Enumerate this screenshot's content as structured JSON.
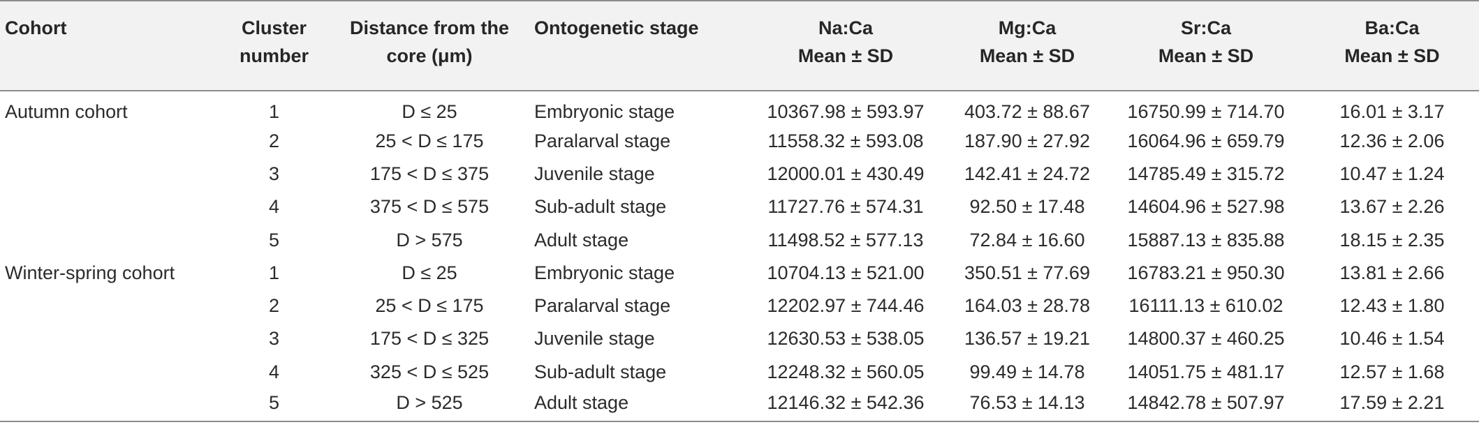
{
  "table": {
    "headers": {
      "cohort": "Cohort",
      "cluster": [
        "Cluster",
        "number"
      ],
      "distance": [
        "Distance from the",
        "core (μm)"
      ],
      "stage": "Ontogenetic stage",
      "na": [
        "Na:Ca",
        "Mean ± SD"
      ],
      "mg": [
        "Mg:Ca",
        "Mean ± SD"
      ],
      "sr": [
        "Sr:Ca",
        "Mean ± SD"
      ],
      "ba": [
        "Ba:Ca",
        "Mean ± SD"
      ]
    },
    "rows": [
      {
        "cohort": "Autumn cohort",
        "cluster": "1",
        "distance": "D ≤ 25",
        "stage": "Embryonic stage",
        "na": "10367.98 ± 593.97",
        "mg": "403.72 ± 88.67",
        "sr": "16750.99 ± 714.70",
        "ba": "16.01 ± 3.17"
      },
      {
        "cohort": "",
        "cluster": "2",
        "distance": "25 < D ≤ 175",
        "stage": "Paralarval stage",
        "na": "11558.32 ± 593.08",
        "mg": "187.90 ± 27.92",
        "sr": "16064.96 ± 659.79",
        "ba": "12.36 ± 2.06"
      },
      {
        "cohort": "",
        "cluster": "3",
        "distance": "175 < D ≤ 375",
        "stage": "Juvenile stage",
        "na": "12000.01 ± 430.49",
        "mg": "142.41 ± 24.72",
        "sr": "14785.49 ± 315.72",
        "ba": "10.47 ± 1.24"
      },
      {
        "cohort": "",
        "cluster": "4",
        "distance": "375 < D ≤ 575",
        "stage": "Sub-adult stage",
        "na": "11727.76 ± 574.31",
        "mg": "92.50 ± 17.48",
        "sr": "14604.96 ± 527.98",
        "ba": "13.67 ± 2.26"
      },
      {
        "cohort": "",
        "cluster": "5",
        "distance": "D > 575",
        "stage": "Adult stage",
        "na": "11498.52 ± 577.13",
        "mg": "72.84 ± 16.60",
        "sr": "15887.13 ± 835.88",
        "ba": "18.15 ± 2.35"
      },
      {
        "cohort": "Winter-spring cohort",
        "cluster": "1",
        "distance": "D ≤ 25",
        "stage": "Embryonic stage",
        "na": "10704.13 ± 521.00",
        "mg": "350.51 ± 77.69",
        "sr": "16783.21 ± 950.30",
        "ba": "13.81 ± 2.66"
      },
      {
        "cohort": "",
        "cluster": "2",
        "distance": "25 < D ≤ 175",
        "stage": "Paralarval stage",
        "na": "12202.97 ± 744.46",
        "mg": "164.03 ± 28.78",
        "sr": "16111.13 ± 610.02",
        "ba": "12.43 ± 1.80"
      },
      {
        "cohort": "",
        "cluster": "3",
        "distance": "175 < D ≤ 325",
        "stage": "Juvenile stage",
        "na": "12630.53 ± 538.05",
        "mg": "136.57 ± 19.21",
        "sr": "14800.37 ± 460.25",
        "ba": "10.46 ± 1.54"
      },
      {
        "cohort": "",
        "cluster": "4",
        "distance": "325 < D ≤ 525",
        "stage": "Sub-adult stage",
        "na": "12248.32 ± 560.05",
        "mg": "99.49 ± 14.78",
        "sr": "14051.75 ± 481.17",
        "ba": "12.57 ± 1.68"
      },
      {
        "cohort": "",
        "cluster": "5",
        "distance": "D > 525",
        "stage": "Adult stage",
        "na": "12146.32 ± 542.36",
        "mg": "76.53 ± 14.13",
        "sr": "14842.78 ± 507.97",
        "ba": "17.59 ± 2.21"
      }
    ]
  },
  "colors": {
    "header_background": "#f2f2f2",
    "rule": "#8c8c8c",
    "text": "#2b2b2b"
  }
}
